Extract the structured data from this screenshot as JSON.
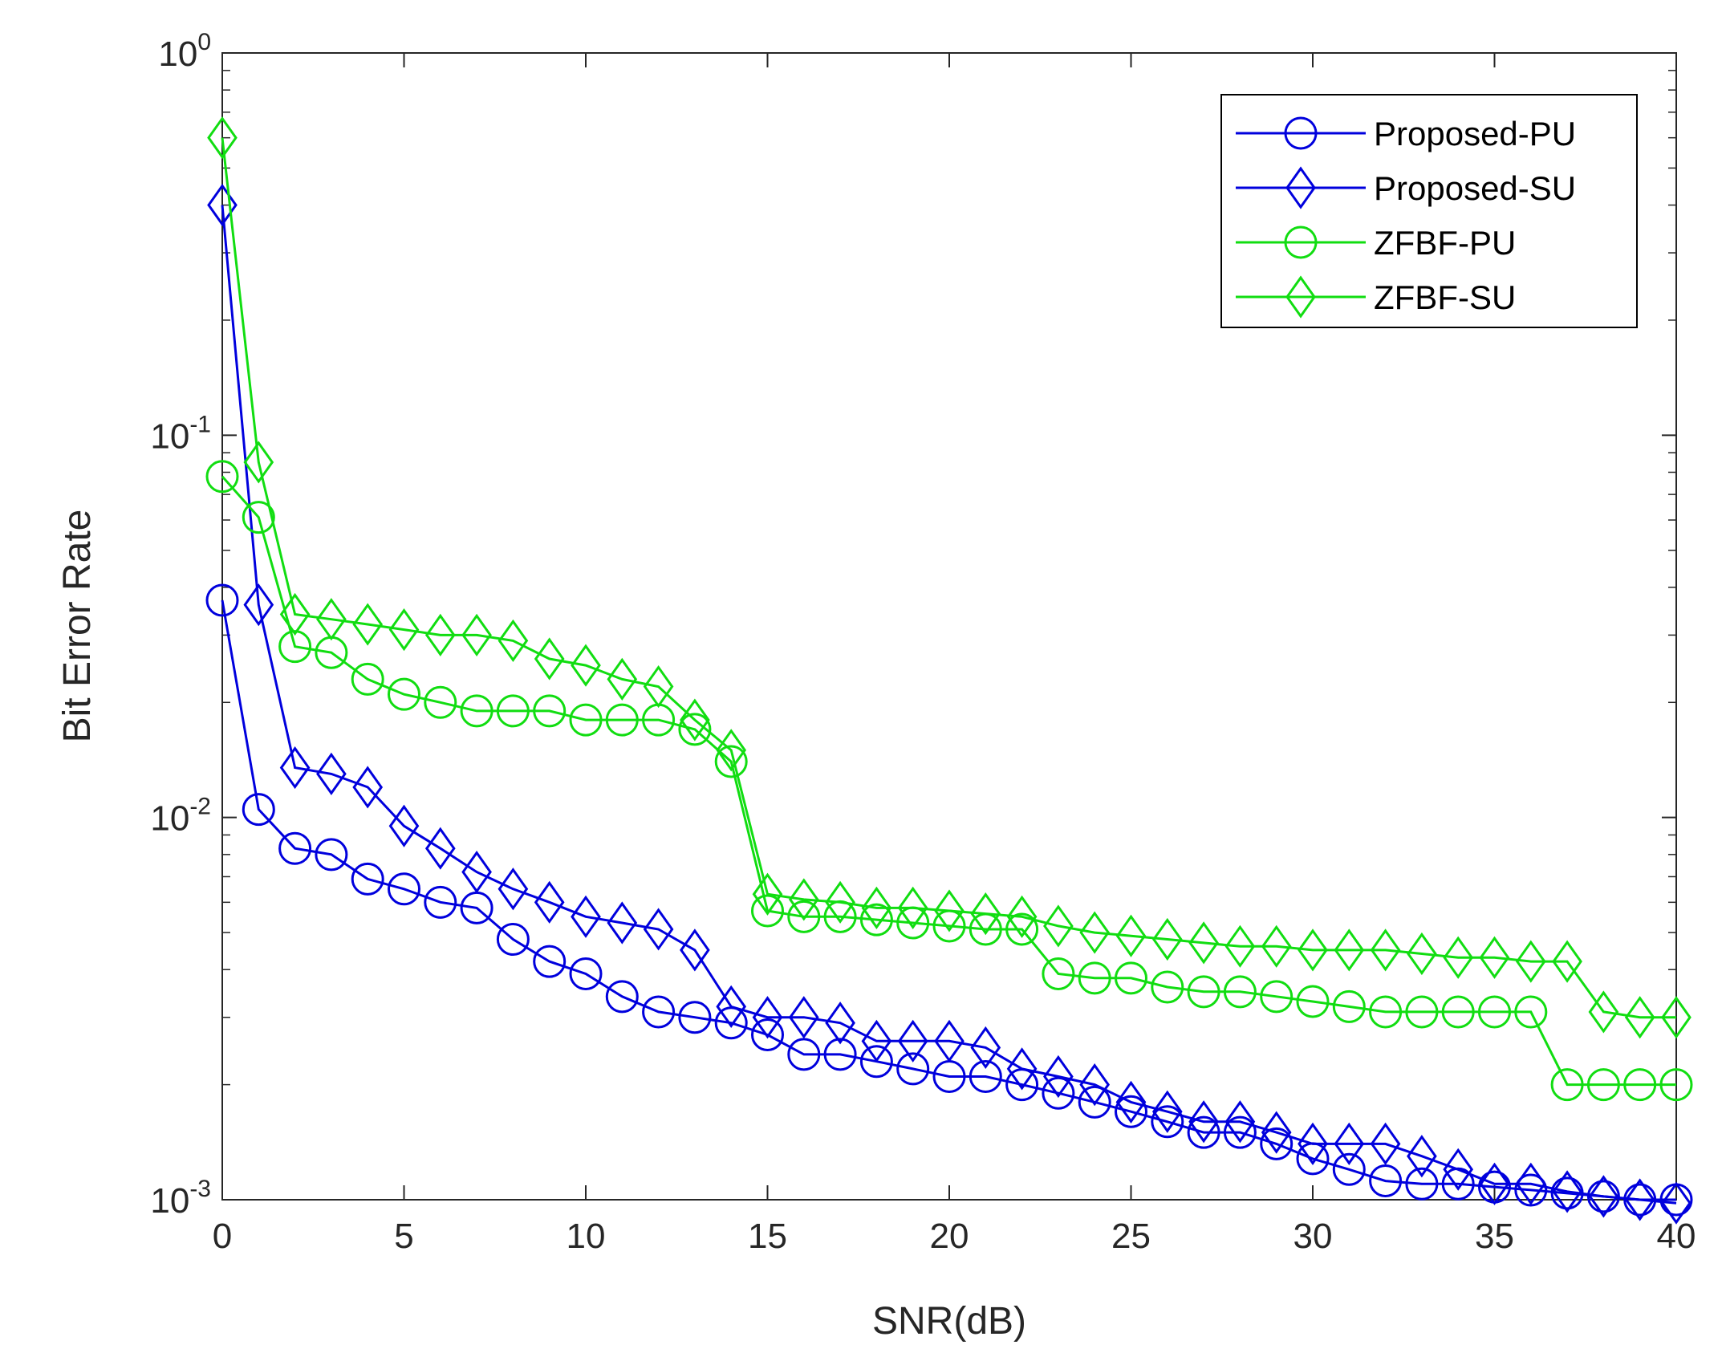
{
  "chart_data": {
    "type": "line",
    "title": "",
    "xlabel": "SNR(dB)",
    "ylabel": "Bit Error Rate",
    "xlim": [
      0,
      40
    ],
    "ylim": [
      0.001,
      1
    ],
    "yscale": "log",
    "grid": false,
    "legend_position": "top-right",
    "x_ticks": [
      0,
      5,
      10,
      15,
      20,
      25,
      30,
      35,
      40
    ],
    "x_tick_labels": [
      "0",
      "5",
      "10",
      "15",
      "20",
      "25",
      "30",
      "35",
      "40"
    ],
    "y_ticks": [
      {
        "value": 1,
        "base": "10",
        "exp": "0"
      },
      {
        "value": 0.1,
        "base": "10",
        "exp": "-1"
      },
      {
        "value": 0.01,
        "base": "10",
        "exp": "-2"
      },
      {
        "value": 0.001,
        "base": "10",
        "exp": "-3"
      }
    ],
    "x": [
      0,
      1,
      2,
      3,
      4,
      5,
      6,
      7,
      8,
      9,
      10,
      11,
      12,
      13,
      14,
      15,
      16,
      17,
      18,
      19,
      20,
      21,
      22,
      23,
      24,
      25,
      26,
      27,
      28,
      29,
      30,
      31,
      32,
      33,
      34,
      35,
      36,
      37,
      38,
      39,
      40
    ],
    "series": [
      {
        "name": "Proposed-PU",
        "color": "#0000dd",
        "marker": "circle",
        "values": [
          0.037,
          0.0105,
          0.0083,
          0.008,
          0.0069,
          0.0065,
          0.006,
          0.0058,
          0.0048,
          0.0042,
          0.0039,
          0.0034,
          0.0031,
          0.003,
          0.0029,
          0.0027,
          0.0024,
          0.0024,
          0.0023,
          0.0022,
          0.0021,
          0.0021,
          0.002,
          0.0019,
          0.0018,
          0.0017,
          0.0016,
          0.0015,
          0.0015,
          0.0014,
          0.00128,
          0.0012,
          0.00112,
          0.0011,
          0.0011,
          0.00108,
          0.00106,
          0.00104,
          0.00102,
          0.001,
          0.001
        ]
      },
      {
        "name": "Proposed-SU",
        "color": "#0000dd",
        "marker": "diamond",
        "values": [
          0.4,
          0.036,
          0.0135,
          0.013,
          0.012,
          0.0095,
          0.0083,
          0.0072,
          0.0065,
          0.006,
          0.0055,
          0.0053,
          0.0051,
          0.0045,
          0.0032,
          0.003,
          0.003,
          0.0029,
          0.0026,
          0.0026,
          0.0026,
          0.0025,
          0.0022,
          0.0021,
          0.002,
          0.0018,
          0.0017,
          0.0016,
          0.0016,
          0.0015,
          0.0014,
          0.0014,
          0.0014,
          0.0013,
          0.0012,
          0.0011,
          0.0011,
          0.00105,
          0.00102,
          0.001,
          0.00098
        ]
      },
      {
        "name": "ZFBF-PU",
        "color": "#11dd11",
        "marker": "circle",
        "values": [
          0.078,
          0.061,
          0.028,
          0.027,
          0.023,
          0.021,
          0.02,
          0.019,
          0.019,
          0.019,
          0.018,
          0.018,
          0.018,
          0.017,
          0.014,
          0.0057,
          0.0055,
          0.0055,
          0.0054,
          0.0053,
          0.0052,
          0.0051,
          0.0051,
          0.0039,
          0.0038,
          0.0038,
          0.0036,
          0.0035,
          0.0035,
          0.0034,
          0.0033,
          0.0032,
          0.0031,
          0.0031,
          0.0031,
          0.0031,
          0.0031,
          0.002,
          0.002,
          0.002,
          0.002
        ]
      },
      {
        "name": "ZFBF-SU",
        "color": "#11dd11",
        "marker": "diamond",
        "values": [
          0.6,
          0.085,
          0.034,
          0.033,
          0.032,
          0.031,
          0.03,
          0.03,
          0.029,
          0.026,
          0.025,
          0.023,
          0.022,
          0.018,
          0.015,
          0.0063,
          0.0061,
          0.006,
          0.0058,
          0.0058,
          0.0057,
          0.0056,
          0.0055,
          0.0052,
          0.005,
          0.0049,
          0.0048,
          0.0047,
          0.0046,
          0.0046,
          0.0045,
          0.0045,
          0.0045,
          0.0044,
          0.0043,
          0.0043,
          0.0042,
          0.0042,
          0.0031,
          0.003,
          0.003
        ]
      }
    ]
  }
}
